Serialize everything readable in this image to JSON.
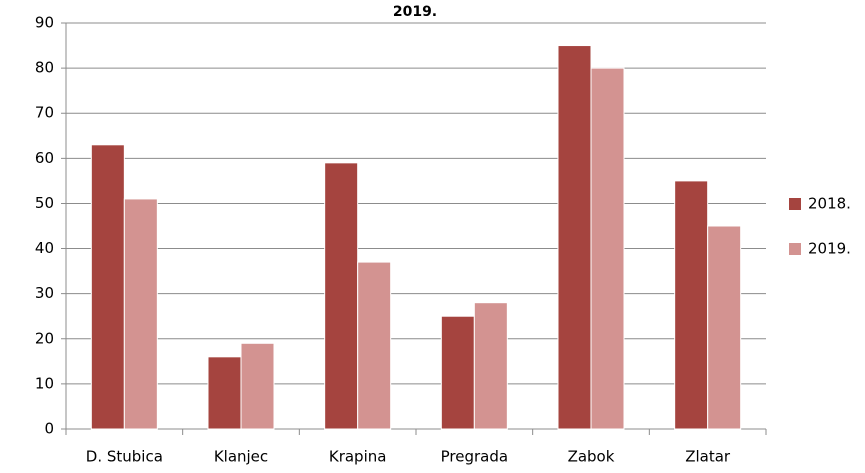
{
  "chart_data": {
    "type": "bar",
    "title": "2019.",
    "categories": [
      "D. Stubica",
      "Klanjec",
      "Krapina",
      "Pregrada",
      "Zabok",
      "Zlatar"
    ],
    "series": [
      {
        "name": "2018.",
        "color": "#a5443f",
        "values": [
          63,
          16,
          59,
          25,
          85,
          55
        ]
      },
      {
        "name": "2019.",
        "color": "#d39391",
        "values": [
          51,
          19,
          37,
          28,
          80,
          45
        ]
      }
    ],
    "ylim": [
      0,
      90
    ],
    "yticks": [
      0,
      10,
      20,
      30,
      40,
      50,
      60,
      70,
      80,
      90
    ],
    "grid": true,
    "legend": "right"
  }
}
